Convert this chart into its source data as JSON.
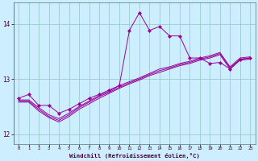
{
  "xlabel": "Windchill (Refroidissement éolien,°C)",
  "background_color": "#cceeff",
  "grid_color": "#99cccc",
  "line_color": "#990099",
  "xlim": [
    -0.5,
    23.5
  ],
  "ylim": [
    11.82,
    14.38
  ],
  "yticks": [
    12,
    13,
    14
  ],
  "xticks": [
    0,
    1,
    2,
    3,
    4,
    5,
    6,
    7,
    8,
    9,
    10,
    11,
    12,
    13,
    14,
    15,
    16,
    17,
    18,
    19,
    20,
    21,
    22,
    23
  ],
  "line1_x": [
    0,
    1,
    2,
    3,
    4,
    5,
    6,
    7,
    8,
    9,
    10,
    11,
    12,
    13,
    14,
    15,
    16,
    17,
    18,
    19,
    20,
    21,
    22,
    23
  ],
  "line1_y": [
    12.65,
    12.72,
    12.52,
    12.52,
    12.38,
    12.45,
    12.55,
    12.65,
    12.72,
    12.8,
    12.88,
    13.88,
    14.2,
    13.88,
    13.95,
    13.78,
    13.78,
    13.38,
    13.38,
    13.28,
    13.3,
    13.18,
    13.35,
    13.38
  ],
  "line2_x": [
    0,
    1,
    2,
    3,
    4,
    5,
    6,
    7,
    8,
    9,
    10,
    11,
    12,
    13,
    14,
    15,
    16,
    17,
    18,
    19,
    20,
    21,
    22,
    23
  ],
  "line2_y": [
    12.62,
    12.62,
    12.48,
    12.35,
    12.28,
    12.38,
    12.5,
    12.6,
    12.7,
    12.78,
    12.88,
    12.95,
    13.02,
    13.1,
    13.18,
    13.22,
    13.28,
    13.32,
    13.38,
    13.42,
    13.48,
    13.22,
    13.38,
    13.4
  ],
  "line3_x": [
    0,
    1,
    2,
    3,
    4,
    5,
    6,
    7,
    8,
    9,
    10,
    11,
    12,
    13,
    14,
    15,
    16,
    17,
    18,
    19,
    20,
    21,
    22,
    23
  ],
  "line3_y": [
    12.6,
    12.6,
    12.45,
    12.32,
    12.25,
    12.35,
    12.48,
    12.58,
    12.68,
    12.76,
    12.85,
    12.93,
    13.0,
    13.08,
    13.15,
    13.2,
    13.26,
    13.3,
    13.36,
    13.4,
    13.46,
    13.2,
    13.36,
    13.38
  ],
  "line4_x": [
    0,
    1,
    2,
    3,
    4,
    5,
    6,
    7,
    8,
    9,
    10,
    11,
    12,
    13,
    14,
    15,
    16,
    17,
    18,
    19,
    20,
    21,
    22,
    23
  ],
  "line4_y": [
    12.58,
    12.58,
    12.42,
    12.3,
    12.22,
    12.32,
    12.45,
    12.55,
    12.65,
    12.74,
    12.83,
    12.91,
    12.98,
    13.06,
    13.12,
    13.18,
    13.24,
    13.28,
    13.34,
    13.38,
    13.44,
    13.18,
    13.34,
    13.36
  ]
}
